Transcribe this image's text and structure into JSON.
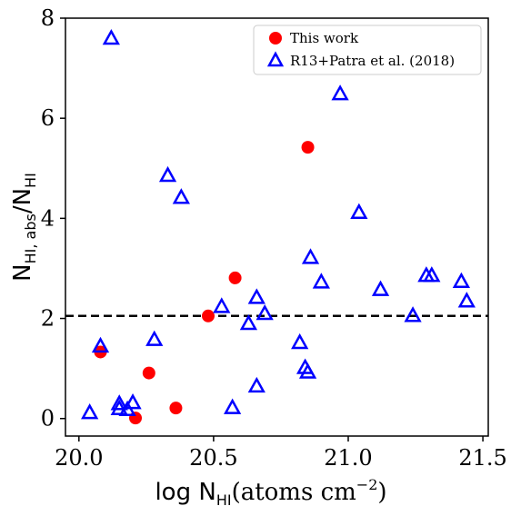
{
  "chart_data": {
    "type": "scatter",
    "title": "",
    "xlabel": {
      "main": "log N",
      "sub": "HI",
      "unit_pre": "(atoms cm",
      "unit_sup": "−2",
      "unit_post": ")"
    },
    "ylabel": {
      "main": "N",
      "sub": "HI, abs",
      "slash": "/N",
      "sub2": "HI"
    },
    "xlim": [
      19.95,
      21.52
    ],
    "ylim": [
      -0.35,
      8.0
    ],
    "xticks": [
      20.0,
      20.5,
      21.0,
      21.5
    ],
    "xtick_labels": [
      "20.0",
      "20.5",
      "21.0",
      "21.5"
    ],
    "yticks": [
      0,
      2,
      4,
      6,
      8
    ],
    "ytick_labels": [
      "0",
      "2",
      "4",
      "6",
      "8"
    ],
    "grid": false,
    "legend_placement": "top-right",
    "reference_line": {
      "y": 2.05,
      "style": "dashed",
      "color": "#000000"
    },
    "series": [
      {
        "name": "This work",
        "marker": "circle",
        "color": "#ff0000",
        "points": [
          {
            "x": 20.08,
            "y": 1.33
          },
          {
            "x": 20.21,
            "y": 0.01
          },
          {
            "x": 20.26,
            "y": 0.91
          },
          {
            "x": 20.36,
            "y": 0.21
          },
          {
            "x": 20.48,
            "y": 2.05
          },
          {
            "x": 20.58,
            "y": 2.81
          },
          {
            "x": 20.85,
            "y": 5.42
          }
        ]
      },
      {
        "name": "R13+Patra et al. (2018)",
        "marker": "triangle",
        "color": "#0000ff",
        "points": [
          {
            "x": 20.04,
            "y": 0.12
          },
          {
            "x": 20.08,
            "y": 1.45
          },
          {
            "x": 20.12,
            "y": 7.6
          },
          {
            "x": 20.15,
            "y": 0.3
          },
          {
            "x": 20.15,
            "y": 0.2
          },
          {
            "x": 20.18,
            "y": 0.18
          },
          {
            "x": 20.2,
            "y": 0.32
          },
          {
            "x": 20.28,
            "y": 1.58
          },
          {
            "x": 20.33,
            "y": 4.86
          },
          {
            "x": 20.38,
            "y": 4.42
          },
          {
            "x": 20.53,
            "y": 2.24
          },
          {
            "x": 20.57,
            "y": 0.22
          },
          {
            "x": 20.63,
            "y": 1.9
          },
          {
            "x": 20.66,
            "y": 2.42
          },
          {
            "x": 20.66,
            "y": 0.65
          },
          {
            "x": 20.69,
            "y": 2.1
          },
          {
            "x": 20.82,
            "y": 1.52
          },
          {
            "x": 20.84,
            "y": 1.02
          },
          {
            "x": 20.85,
            "y": 0.93
          },
          {
            "x": 20.86,
            "y": 3.22
          },
          {
            "x": 20.9,
            "y": 2.73
          },
          {
            "x": 20.97,
            "y": 6.49
          },
          {
            "x": 21.04,
            "y": 4.12
          },
          {
            "x": 21.12,
            "y": 2.58
          },
          {
            "x": 21.24,
            "y": 2.06
          },
          {
            "x": 21.29,
            "y": 2.86
          },
          {
            "x": 21.31,
            "y": 2.86
          },
          {
            "x": 21.42,
            "y": 2.74
          },
          {
            "x": 21.44,
            "y": 2.35
          }
        ]
      }
    ]
  }
}
